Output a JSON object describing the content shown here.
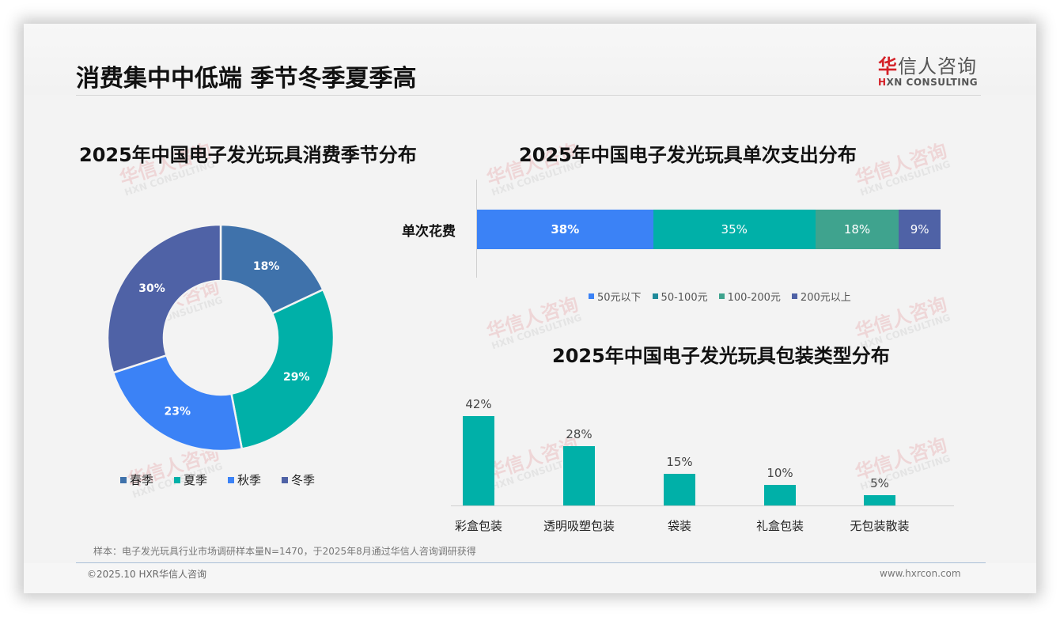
{
  "header": {
    "title": "消费集中中低端 季节冬季夏季高",
    "logo_cn_red": "华",
    "logo_cn_rest": "信人咨询",
    "logo_en_red": "H",
    "logo_en_rest": "XN CONSULTING"
  },
  "watermark": {
    "cn": "华信人咨询",
    "en": "HXN CONSULTING"
  },
  "chart_data": [
    {
      "type": "pie",
      "variant": "donut",
      "title": "2025年中国电子发光玩具消费季节分布",
      "categories": [
        "春季",
        "夏季",
        "秋季",
        "冬季"
      ],
      "values": [
        18,
        29,
        23,
        30
      ],
      "labels": [
        "18%",
        "29%",
        "23%",
        "30%"
      ],
      "colors": [
        "#3f72ab",
        "#00b0a8",
        "#3b82f6",
        "#4f62a6"
      ],
      "legend_position": "bottom"
    },
    {
      "type": "bar",
      "orientation": "horizontal-stacked",
      "title": "2025年中国电子发光玩具单次支出分布",
      "categories": [
        "单次花费"
      ],
      "series": [
        {
          "name": "50元以下",
          "values": [
            38
          ],
          "label": "38%",
          "color": "#3b82f6"
        },
        {
          "name": "50-100元",
          "values": [
            35
          ],
          "label": "35%",
          "color": "#00b0a8"
        },
        {
          "name": "100-200元",
          "values": [
            18
          ],
          "label": "18%",
          "color": "#3fa38e"
        },
        {
          "name": "200元以上",
          "values": [
            9
          ],
          "label": "9%",
          "color": "#4f62a6"
        }
      ],
      "legend_position": "bottom"
    },
    {
      "type": "bar",
      "title": "2025年中国电子发光玩具包装类型分布",
      "categories": [
        "彩盒包装",
        "透明吸塑包装",
        "袋装",
        "礼盒包装",
        "无包装散装"
      ],
      "values": [
        42,
        28,
        15,
        10,
        5
      ],
      "labels": [
        "42%",
        "28%",
        "15%",
        "10%",
        "5%"
      ],
      "color": "#00b0a8",
      "xlabel": "",
      "ylabel": "",
      "grid": false
    }
  ],
  "footer": {
    "note": "样本：电子发光玩具行业市场调研样本量N=1470，于2025年8月通过华信人咨询调研获得",
    "copyright": "©2025.10 HXR华信人咨询",
    "website": "www.hxrcon.com"
  }
}
